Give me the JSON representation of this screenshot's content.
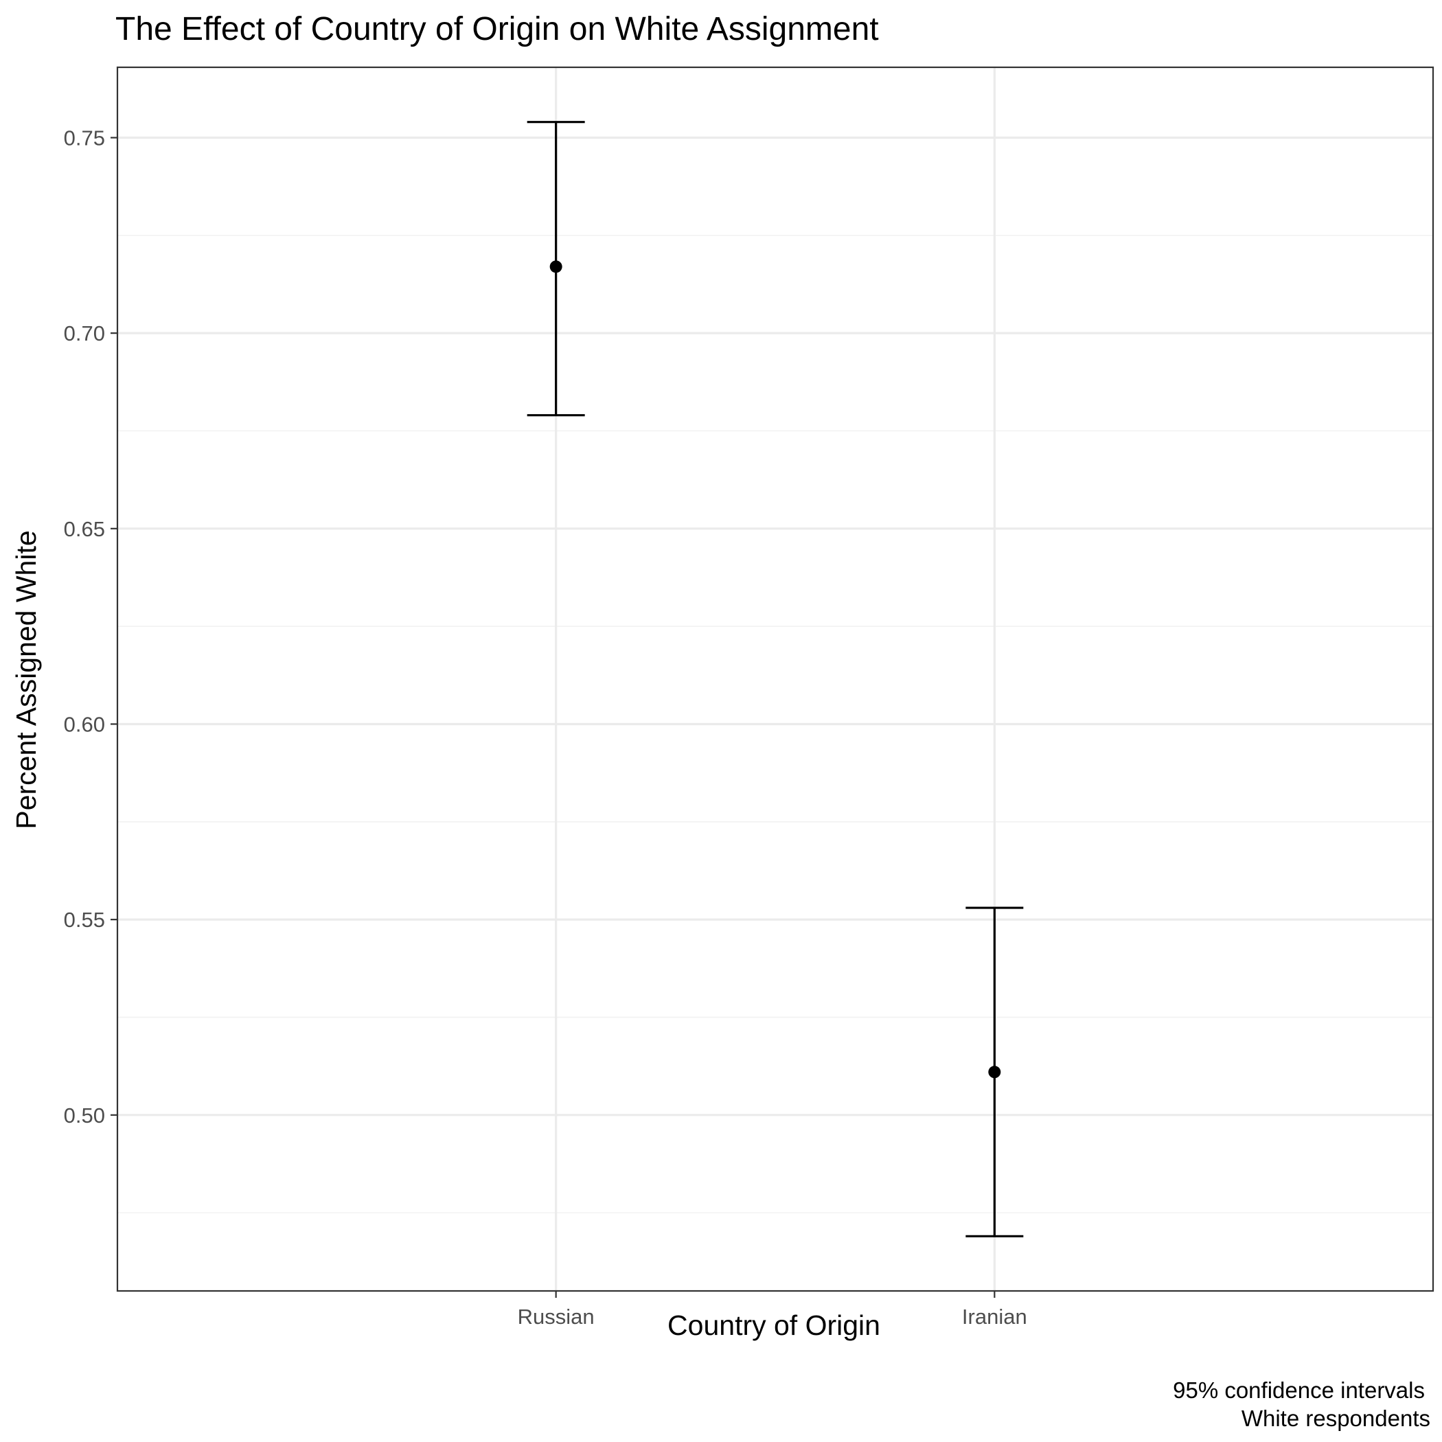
{
  "chart_data": {
    "type": "errorbar",
    "title": "The Effect of Country of Origin on White Assignment",
    "xlabel": "Country of Origin",
    "ylabel": "Percent Assigned White",
    "categories": [
      "Russian",
      "Iranian"
    ],
    "values": [
      0.717,
      0.511
    ],
    "lower": [
      0.679,
      0.469
    ],
    "upper": [
      0.754,
      0.553
    ],
    "ylim": [
      0.455,
      0.768
    ],
    "yticks": [
      0.5,
      0.55,
      0.6,
      0.65,
      0.7,
      0.75
    ],
    "ytick_labels": [
      "0.50",
      "0.55",
      "0.60",
      "0.65",
      "0.70",
      "0.75"
    ],
    "grid": true,
    "caption": [
      "95% confidence intervals",
      "White respondents"
    ],
    "colors": {
      "marks": "#000000",
      "grid_major": "#ebebeb",
      "grid_minor": "#f2f2f2",
      "panel_border": "#333333",
      "tick_label": "#4d4d4d"
    }
  }
}
